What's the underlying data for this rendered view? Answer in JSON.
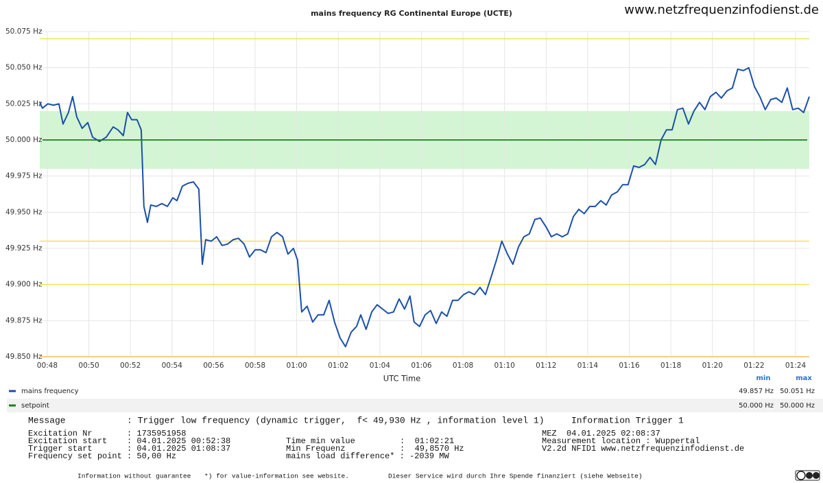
{
  "chart_data": {
    "type": "line",
    "title": "mains frequency RG Continental Europe (UCTE)",
    "site": "www.netzfrequenzinfodienst.de",
    "xlabel": "UTC Time",
    "xlim": [
      47.64,
      84.66
    ],
    "ylim": [
      49.85,
      50.075
    ],
    "xticks": [
      {
        "value": 48,
        "label": "00:48"
      },
      {
        "value": 50,
        "label": "00:50"
      },
      {
        "value": 52,
        "label": "00:52"
      },
      {
        "value": 54,
        "label": "00:54"
      },
      {
        "value": 56,
        "label": "00:56"
      },
      {
        "value": 58,
        "label": "00:58"
      },
      {
        "value": 60,
        "label": "01:00"
      },
      {
        "value": 62,
        "label": "01:02"
      },
      {
        "value": 64,
        "label": "01:04"
      },
      {
        "value": 66,
        "label": "01:06"
      },
      {
        "value": 68,
        "label": "01:08"
      },
      {
        "value": 70,
        "label": "01:10"
      },
      {
        "value": 72,
        "label": "01:12"
      },
      {
        "value": 74,
        "label": "01:14"
      },
      {
        "value": 76,
        "label": "01:16"
      },
      {
        "value": 78,
        "label": "01:18"
      },
      {
        "value": 80,
        "label": "01:20"
      },
      {
        "value": 82,
        "label": "01:22"
      },
      {
        "value": 84,
        "label": "01:24"
      }
    ],
    "yticks": [
      {
        "value": 50.075,
        "label": "50.075 Hz"
      },
      {
        "value": 50.05,
        "label": "50.050 Hz"
      },
      {
        "value": 50.025,
        "label": "50.025 Hz"
      },
      {
        "value": 50.0,
        "label": "50.000 Hz"
      },
      {
        "value": 49.975,
        "label": "49.975 Hz"
      },
      {
        "value": 49.95,
        "label": "49.950 Hz"
      },
      {
        "value": 49.925,
        "label": "49.925 Hz"
      },
      {
        "value": 49.9,
        "label": "49.900 Hz"
      },
      {
        "value": 49.875,
        "label": "49.875 Hz"
      },
      {
        "value": 49.85,
        "label": "49.850 Hz"
      }
    ],
    "grid": true,
    "band": {
      "from": 49.98,
      "to": 50.02,
      "color": "#d3f5d3"
    },
    "reference_lines": [
      {
        "value": 50.07,
        "color": "#f2e24a"
      },
      {
        "value": 49.93,
        "color": "#f2e24a"
      },
      {
        "value": 49.9,
        "color": "#f2e24a"
      },
      {
        "value": 49.85,
        "color": "#f0c050"
      }
    ],
    "legend_headers": [
      "min",
      "max"
    ],
    "x": [
      47.64,
      47.77,
      48.03,
      48.3,
      48.56,
      48.76,
      49.02,
      49.22,
      49.42,
      49.68,
      49.95,
      50.18,
      50.51,
      50.84,
      51.17,
      51.4,
      51.66,
      51.86,
      52.06,
      52.32,
      52.52,
      52.65,
      52.82,
      52.98,
      53.25,
      53.51,
      53.78,
      54.04,
      54.24,
      54.5,
      54.76,
      55.03,
      55.29,
      55.46,
      55.62,
      55.89,
      56.15,
      56.41,
      56.68,
      56.94,
      57.2,
      57.47,
      57.73,
      58.0,
      58.26,
      58.52,
      58.79,
      59.05,
      59.32,
      59.58,
      59.84,
      60.04,
      60.24,
      60.5,
      60.77,
      61.03,
      61.3,
      61.56,
      61.82,
      62.09,
      62.35,
      62.62,
      62.88,
      63.08,
      63.34,
      63.61,
      63.87,
      64.13,
      64.4,
      64.66,
      64.93,
      65.19,
      65.45,
      65.65,
      65.91,
      66.18,
      66.44,
      66.71,
      66.97,
      67.23,
      67.5,
      67.76,
      68.03,
      68.29,
      68.55,
      68.82,
      69.08,
      69.35,
      69.61,
      69.87,
      70.14,
      70.4,
      70.67,
      70.93,
      71.19,
      71.46,
      71.72,
      71.99,
      72.25,
      72.51,
      72.78,
      73.04,
      73.31,
      73.57,
      73.83,
      74.1,
      74.36,
      74.63,
      74.89,
      75.15,
      75.42,
      75.68,
      75.94,
      76.21,
      76.47,
      76.74,
      77.0,
      77.26,
      77.53,
      77.79,
      78.06,
      78.32,
      78.58,
      78.85,
      79.11,
      79.38,
      79.64,
      79.9,
      80.17,
      80.43,
      80.7,
      80.96,
      81.22,
      81.49,
      81.75,
      82.02,
      82.28,
      82.54,
      82.81,
      83.07,
      83.34,
      83.6,
      83.86,
      84.13,
      84.39,
      84.66
    ],
    "series": [
      {
        "name": "mains frequency",
        "color": "#1a4fa8",
        "min": "49.857 Hz",
        "max": "50.051 Hz",
        "values": [
          50.026,
          50.022,
          50.025,
          50.024,
          50.025,
          50.011,
          50.019,
          50.03,
          50.016,
          50.008,
          50.012,
          50.002,
          49.999,
          50.002,
          50.009,
          50.007,
          50.003,
          50.019,
          50.014,
          50.014,
          50.007,
          49.954,
          49.943,
          49.955,
          49.954,
          49.956,
          49.954,
          49.96,
          49.958,
          49.968,
          49.97,
          49.971,
          49.966,
          49.914,
          49.931,
          49.93,
          49.933,
          49.927,
          49.928,
          49.931,
          49.932,
          49.928,
          49.919,
          49.924,
          49.924,
          49.922,
          49.933,
          49.936,
          49.933,
          49.921,
          49.925,
          49.917,
          49.881,
          49.885,
          49.874,
          49.879,
          49.879,
          49.889,
          49.874,
          49.863,
          49.857,
          49.867,
          49.871,
          49.879,
          49.869,
          49.881,
          49.886,
          49.883,
          49.88,
          49.881,
          49.89,
          49.883,
          49.892,
          49.874,
          49.871,
          49.879,
          49.882,
          49.873,
          49.881,
          49.878,
          49.889,
          49.889,
          49.893,
          49.895,
          49.893,
          49.898,
          49.893,
          49.905,
          49.917,
          49.93,
          49.921,
          49.914,
          49.926,
          49.933,
          49.935,
          49.945,
          49.946,
          49.94,
          49.933,
          49.935,
          49.933,
          49.935,
          49.947,
          49.952,
          49.949,
          49.954,
          49.954,
          49.958,
          49.955,
          49.962,
          49.964,
          49.969,
          49.969,
          49.982,
          49.981,
          49.983,
          49.988,
          49.983,
          50.0,
          50.007,
          50.007,
          50.021,
          50.022,
          50.011,
          50.02,
          50.026,
          50.021,
          50.03,
          50.033,
          50.029,
          50.034,
          50.036,
          50.049,
          50.048,
          50.05,
          50.037,
          50.03,
          50.021,
          50.028,
          50.029,
          50.026,
          50.036,
          50.021,
          50.022,
          50.019,
          50.03
        ]
      },
      {
        "name": "setpoint",
        "color": "#1f7a1f",
        "min": "50.000 Hz",
        "max": "50.000 Hz",
        "value": 50.0
      }
    ]
  },
  "info": {
    "message": [
      "Message",
      ": Trigger low frequency (dynamic trigger,  f< 49,930 Hz , information level 1)",
      "Information Trigger 1"
    ],
    "columns": [
      [
        "Excitation Nr",
        "Excitation start",
        "Trigger start",
        "Frequency set point"
      ],
      [
        ": 1735951958",
        ": 04.01.2025 00:52:38",
        ": 04.01.2025 01:08:37",
        ": 50,00 Hz"
      ],
      [
        "Time min value",
        "Min Frequenz",
        "mains load difference* : -2039 MW"
      ],
      [
        ":  01:02:21",
        ":  49,8570 Hz"
      ],
      [
        "MEZ  04.01.2025 02:08:37",
        "Measurement location : Wuppertal",
        "V2.2d NFID1 www.netzfrequenzinfodienst.de"
      ]
    ],
    "footer": [
      "Information without guarantee",
      "*) for value-information see website.",
      "Dieser Service wird durch Ihre Spende finanziert (siehe Webseite)"
    ]
  }
}
